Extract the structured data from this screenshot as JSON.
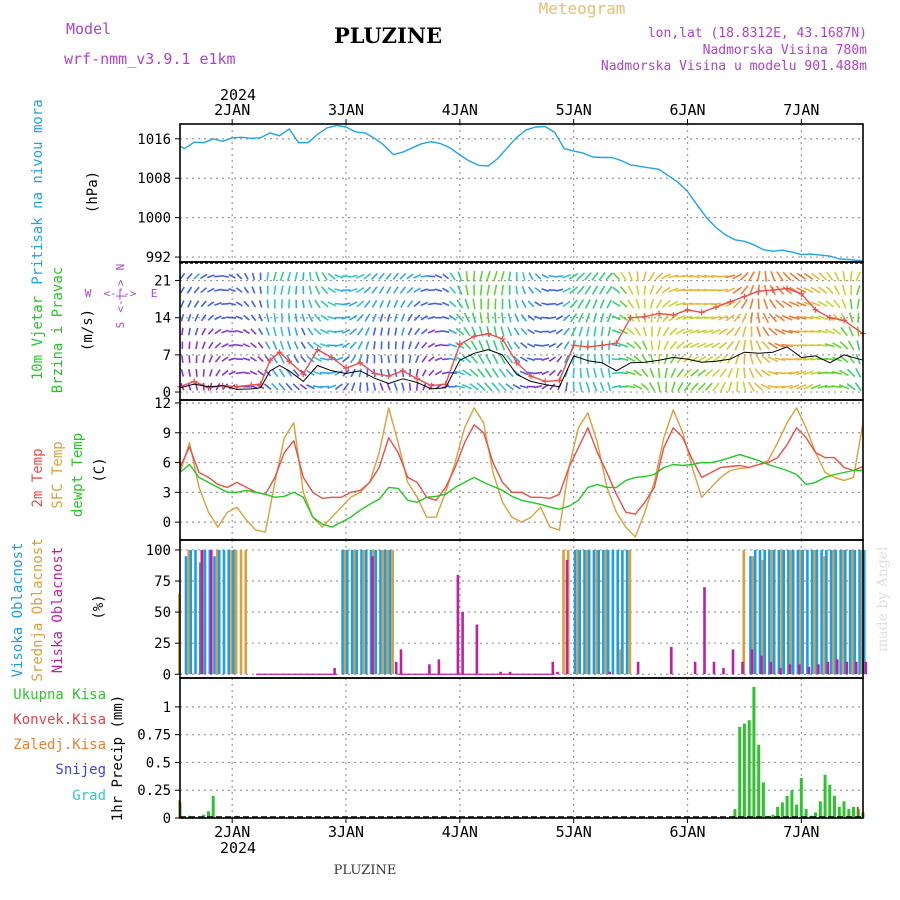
{
  "header": {
    "model_label": "Model",
    "model_name": "wrf-nmm_v3.9.1 e1km",
    "title": "PLUZINE",
    "product": "Meteogram",
    "lonlat": "lon,lat (18.8312E, 43.1687N)",
    "elevation": "Nadmorska Visina 780m",
    "model_elevation": "Nadmorska Visina u modelu 901.488m",
    "footer_title": "PLUZINE",
    "credit": "made by Angel"
  },
  "time_axis": {
    "year": "2024",
    "days": [
      "2JAN",
      "3JAN",
      "4JAN",
      "5JAN",
      "6JAN",
      "7JAN"
    ],
    "start_hour": -11,
    "end_hour": 133
  },
  "colors": {
    "pressure": "#1fa5e6",
    "temp2m": "#e8504a",
    "sfc": "#dba03c",
    "dewpt": "#24c824",
    "high_cloud": "#1f9ce6",
    "mid_cloud": "#dba03c",
    "low_cloud": "#c020a0",
    "total_precip": "#2fc42f",
    "conv_precip": "#e8404a",
    "frz_precip": "#f08030",
    "snow": "#4040e0",
    "graupel": "#30c8c8",
    "gust": "#e8504a",
    "meteogram": "#e8c070",
    "meta_text": "#b040d0"
  },
  "panels": {
    "pressure": {
      "labels": [
        "Pritisak na nivou mora",
        "(hPa)"
      ],
      "ylim": [
        991,
        1019
      ],
      "ticks": [
        "992",
        "1000",
        "1008",
        "1016"
      ]
    },
    "wind": {
      "labels": [
        "10m Vjetar",
        "Brzina i Pravac",
        "(m/s)"
      ],
      "ylim": [
        -1.5,
        24.5
      ],
      "ticks": [
        "0",
        "7",
        "14",
        "21"
      ],
      "compass": {
        "n": "N",
        "s": "S",
        "w": "W",
        "e": "E",
        "arrows": "<-|->"
      }
    },
    "temp": {
      "labels": [
        "2m Temp",
        "SFC Temp",
        "dewpt Temp",
        "(C)"
      ],
      "ylim": [
        -1.8,
        12.3
      ],
      "ticks": [
        "0",
        "3",
        "6",
        "9",
        "12"
      ]
    },
    "cloud": {
      "labels": [
        "Visoka Oblacnost",
        "Srednja Oblacnost",
        "Niska Oblacnost",
        "(%)"
      ],
      "ylim": [
        -3,
        108
      ],
      "ticks": [
        "0",
        "25",
        "50",
        "75",
        "100"
      ]
    },
    "precip": {
      "labels": [
        "Ukupna Kisa",
        "Konvek.Kisa",
        "Zaledj.Kisa",
        "Snijeg",
        "Grad",
        "1hr Precip (mm)"
      ],
      "ylim": [
        0,
        1.26
      ],
      "ticks": [
        "0",
        "0.25",
        "0.5",
        "0.75",
        "1"
      ]
    }
  },
  "chart_data": {
    "type": "line",
    "x_unit": "hours from 2 Jan 2024 00 UTC",
    "pressure_hpa": {
      "x": [
        -11,
        -10,
        -8,
        -6,
        -4,
        -2,
        0,
        2,
        4,
        6,
        8,
        10,
        12,
        14,
        16,
        18,
        20,
        22,
        24,
        26,
        28,
        30,
        32,
        34,
        36,
        38,
        40,
        42,
        44,
        46,
        48,
        50,
        52,
        54,
        56,
        58,
        60,
        62,
        64,
        66,
        68,
        70,
        72,
        74,
        76,
        78,
        80,
        82,
        84,
        86,
        88,
        90,
        92,
        94,
        96,
        98,
        100,
        102,
        104,
        106,
        108,
        110,
        112,
        114,
        116,
        118,
        120,
        122,
        124,
        126,
        128,
        130,
        133
      ],
      "values": [
        1014.5,
        1014,
        1015.3,
        1015.2,
        1016,
        1015.5,
        1016.2,
        1016.3,
        1016.1,
        1016.2,
        1017.2,
        1016.6,
        1018,
        1015.2,
        1015.2,
        1016.9,
        1018.2,
        1018.7,
        1018.4,
        1017.4,
        1017.2,
        1016.1,
        1014.7,
        1012.8,
        1013.3,
        1014.2,
        1015,
        1015.4,
        1015,
        1014.1,
        1012.7,
        1011.5,
        1010.6,
        1010.5,
        1012,
        1014.2,
        1016.3,
        1017.8,
        1018.4,
        1018.5,
        1017.3,
        1014,
        1013.5,
        1013.1,
        1012.3,
        1012.2,
        1012.2,
        1011.6,
        1010.7,
        1010.4,
        1010.1,
        1009.8,
        1008.5,
        1007.2,
        1005.3,
        1002.6,
        1000,
        998,
        996.5,
        995.5,
        995.2,
        994.5,
        993.5,
        993.2,
        993.4,
        993,
        992.5,
        992.6,
        992.4,
        992.2,
        991.6,
        991.5,
        991.2
      ]
    },
    "wind_speed_ms": {
      "x": [
        -11,
        -8,
        -5,
        -2,
        1,
        4,
        6,
        8,
        10,
        12,
        15,
        18,
        21,
        24,
        27,
        30,
        33,
        36,
        39,
        42,
        45,
        48,
        51,
        54,
        57,
        60,
        63,
        66,
        69,
        72,
        75,
        78,
        81,
        84,
        87,
        90,
        93,
        96,
        99,
        102,
        105,
        108,
        111,
        114,
        117,
        120,
        123,
        126,
        129,
        133
      ],
      "values": [
        0.8,
        1.5,
        1,
        1.2,
        0.5,
        0.6,
        0.8,
        4,
        5,
        4,
        2,
        5,
        4,
        3.5,
        4,
        2.6,
        1.6,
        2.5,
        1.8,
        0.6,
        0.8,
        6,
        7.3,
        8,
        7,
        3.3,
        2,
        1.4,
        1,
        6.8,
        5.9,
        5.5,
        4,
        5.5,
        5.6,
        6,
        6.5,
        6.2,
        5.6,
        5.8,
        6.2,
        7.5,
        7.3,
        7.5,
        8.5,
        6.5,
        6.8,
        5.5,
        7,
        6
      ]
    },
    "wind_gust_ms": {
      "x": [
        -11,
        -8,
        -5,
        -2,
        1,
        4,
        6,
        8,
        10,
        12,
        15,
        18,
        21,
        24,
        27,
        30,
        33,
        36,
        39,
        42,
        45,
        48,
        51,
        54,
        57,
        60,
        63,
        66,
        69,
        72,
        75,
        78,
        81,
        84,
        87,
        90,
        93,
        96,
        99,
        102,
        105,
        108,
        111,
        114,
        117,
        120,
        123,
        126,
        129,
        133
      ],
      "values": [
        1,
        2,
        0.8,
        1.2,
        1,
        1.3,
        1.5,
        6,
        7.5,
        5.8,
        3.4,
        8,
        6.5,
        4.5,
        5.5,
        3.5,
        3,
        4,
        2.5,
        1.2,
        1.5,
        9,
        10.5,
        11,
        10,
        5.5,
        3,
        2,
        2.2,
        8.8,
        8.5,
        8.8,
        9.2,
        14,
        14.2,
        14.8,
        14.5,
        15.5,
        15,
        16,
        17,
        18,
        19,
        19.2,
        19.5,
        18.5,
        15.5,
        14,
        13.5,
        11
      ]
    },
    "temp_2m_c": {
      "x": [
        -11,
        -9,
        -7,
        -5,
        -3,
        -1,
        1,
        3,
        5,
        7,
        9,
        11,
        13,
        15,
        17,
        19,
        21,
        23,
        25,
        27,
        29,
        31,
        33,
        35,
        37,
        39,
        41,
        43,
        45,
        47,
        49,
        51,
        53,
        55,
        57,
        59,
        61,
        63,
        65,
        67,
        69,
        71,
        73,
        75,
        77,
        79,
        81,
        83,
        85,
        87,
        89,
        91,
        93,
        95,
        97,
        99,
        101,
        103,
        105,
        107,
        109,
        111,
        113,
        115,
        117,
        119,
        121,
        123,
        125,
        127,
        129,
        131,
        133
      ],
      "values": [
        5.5,
        7.6,
        5,
        4.5,
        3.8,
        3.5,
        4,
        3.5,
        3,
        2.8,
        4.5,
        7,
        8.2,
        4.5,
        3,
        2.4,
        2.5,
        2.5,
        3,
        3.2,
        4,
        5.5,
        8.5,
        7,
        4.5,
        4,
        2.5,
        2.2,
        3.5,
        5.5,
        8,
        9.8,
        9,
        6,
        4,
        3,
        3,
        2.5,
        2.5,
        2.4,
        2.8,
        5.5,
        7.5,
        9.5,
        7,
        5,
        2.8,
        1,
        0.8,
        2,
        3.5,
        7.5,
        9.5,
        8.5,
        6.3,
        4.5,
        5,
        5.5,
        5.6,
        5.7,
        5.5,
        5.8,
        6,
        6.5,
        7.8,
        9.5,
        8.5,
        7,
        6.5,
        6.5,
        5.5,
        5.2,
        5.6
      ]
    },
    "temp_sfc_c": {
      "x": [
        -11,
        -9,
        -7,
        -5,
        -3,
        -1,
        1,
        3,
        5,
        7,
        9,
        11,
        13,
        15,
        17,
        19,
        21,
        23,
        25,
        27,
        29,
        31,
        33,
        35,
        37,
        39,
        41,
        43,
        45,
        47,
        49,
        51,
        53,
        55,
        57,
        59,
        61,
        63,
        65,
        67,
        69,
        71,
        73,
        75,
        77,
        79,
        81,
        83,
        85,
        87,
        89,
        91,
        93,
        95,
        97,
        99,
        101,
        103,
        105,
        107,
        109,
        111,
        113,
        115,
        117,
        119,
        121,
        123,
        125,
        127,
        129,
        131,
        133
      ],
      "values": [
        5,
        8,
        3.5,
        1,
        -0.5,
        1,
        1.5,
        0.2,
        -0.8,
        -1,
        4,
        8.5,
        10,
        3,
        0.5,
        -0.5,
        0.5,
        1.5,
        2.5,
        3,
        4,
        7,
        11.5,
        8,
        4,
        2.5,
        0.5,
        0.5,
        3,
        6,
        9.5,
        11.5,
        10,
        5,
        2,
        0.5,
        0,
        0.5,
        1.5,
        -0.5,
        -0.8,
        5.5,
        9.5,
        11,
        8,
        3.5,
        1,
        -0.5,
        -1.5,
        1,
        4,
        8.5,
        11.3,
        9,
        5.5,
        2.5,
        3.5,
        4.5,
        5.2,
        5.4,
        5.5,
        5.8,
        6.2,
        8,
        10,
        11.5,
        9.5,
        7,
        5,
        4.5,
        4.2,
        4.5,
        10
      ]
    },
    "temp_dewpt_c": {
      "x": [
        -11,
        -9,
        -7,
        -5,
        -3,
        -1,
        1,
        3,
        5,
        7,
        9,
        11,
        13,
        15,
        17,
        19,
        21,
        23,
        25,
        27,
        29,
        31,
        33,
        35,
        37,
        39,
        41,
        43,
        45,
        47,
        49,
        51,
        53,
        55,
        57,
        59,
        61,
        63,
        65,
        67,
        69,
        71,
        73,
        75,
        77,
        79,
        81,
        83,
        85,
        87,
        89,
        91,
        93,
        95,
        97,
        99,
        101,
        103,
        105,
        107,
        109,
        111,
        113,
        115,
        117,
        119,
        121,
        123,
        125,
        127,
        129,
        131,
        133
      ],
      "values": [
        5,
        5.8,
        4.5,
        4,
        3.5,
        3,
        3,
        3.2,
        3,
        2.8,
        2.5,
        2.6,
        3,
        2.5,
        0.5,
        -0.2,
        -0.5,
        0,
        0.5,
        1.2,
        1.8,
        2.3,
        3.5,
        3.4,
        2.2,
        2,
        2.5,
        2.6,
        2.8,
        3.5,
        4,
        4.5,
        4,
        3.6,
        3.2,
        2.6,
        2.2,
        2,
        1.8,
        1.5,
        1.3,
        1.6,
        2.2,
        3.5,
        3.8,
        3.5,
        3.5,
        4.2,
        4.5,
        4.6,
        4.8,
        5.5,
        5.8,
        5.7,
        5.8,
        6,
        6,
        6.2,
        6.5,
        6.8,
        6.5,
        6.2,
        5.8,
        5.5,
        5.2,
        4.8,
        3.8,
        4,
        4.5,
        4.8,
        5,
        5.2,
        5.2
      ]
    },
    "cloud_high_pct": {
      "x": [
        -10,
        -9,
        -8,
        -7,
        -6,
        -5,
        -4,
        -3,
        -2,
        -1,
        0,
        23,
        24,
        25,
        26,
        27,
        28,
        29,
        30,
        31,
        32,
        33,
        72,
        73,
        74,
        75,
        76,
        77,
        78,
        79,
        80,
        81,
        82,
        83,
        109,
        110,
        111,
        112,
        113,
        114,
        115,
        116,
        117,
        118,
        119,
        120,
        121,
        122,
        123,
        124,
        125,
        126,
        127,
        128,
        129,
        130,
        131,
        132,
        133
      ],
      "values": [
        95,
        100,
        100,
        90,
        100,
        100,
        95,
        100,
        100,
        100,
        100,
        100,
        100,
        100,
        100,
        100,
        100,
        100,
        100,
        100,
        100,
        100,
        100,
        100,
        100,
        100,
        100,
        100,
        100,
        100,
        100,
        100,
        100,
        100,
        95,
        100,
        100,
        100,
        100,
        100,
        100,
        100,
        100,
        100,
        100,
        100,
        100,
        100,
        100,
        100,
        100,
        100,
        100,
        100,
        100,
        100,
        100,
        100,
        100
      ]
    },
    "cloud_mid_pct": {
      "x": [
        -11,
        -9,
        -6,
        -3,
        0,
        1,
        2,
        3,
        24,
        26,
        28,
        30,
        32,
        33,
        34,
        70,
        71,
        73,
        75,
        77,
        79,
        82,
        84,
        108,
        110,
        112,
        114,
        116,
        118,
        120,
        123,
        125,
        127,
        129,
        131,
        133
      ],
      "values": [
        65,
        100,
        100,
        100,
        100,
        100,
        100,
        100,
        100,
        100,
        100,
        100,
        100,
        100,
        100,
        100,
        100,
        100,
        100,
        100,
        100,
        20,
        100,
        100,
        95,
        92,
        100,
        100,
        100,
        100,
        100,
        95,
        100,
        100,
        100,
        100
      ]
    },
    "cloud_low_pct": {
      "x": [
        -7,
        -5,
        21,
        29,
        34,
        35,
        41,
        43,
        47,
        48,
        51,
        56,
        58,
        67,
        68,
        70,
        79,
        85,
        92,
        97,
        99,
        101,
        103,
        105,
        107,
        109,
        111,
        113,
        115,
        117,
        119,
        121,
        123,
        125,
        127,
        129,
        131,
        133
      ],
      "values": [
        100,
        100,
        5,
        95,
        10,
        20,
        8,
        12,
        80,
        50,
        40,
        2,
        2,
        10,
        2,
        92,
        2,
        10,
        22,
        10,
        70,
        10,
        5,
        20,
        10,
        20,
        15,
        10,
        5,
        8,
        8,
        6,
        8,
        10,
        12,
        10,
        10,
        10
      ]
    },
    "precip_total_mm": {
      "x": [
        -11,
        -9,
        -8,
        -7,
        -6,
        -5,
        -4,
        1,
        2,
        3,
        4,
        5,
        6,
        7,
        8,
        9,
        10,
        106,
        107,
        108,
        109,
        110,
        111,
        112,
        113,
        114,
        115,
        116,
        117,
        118,
        119,
        120,
        121,
        122,
        123,
        124,
        125,
        126,
        127,
        128,
        129,
        130,
        131,
        132,
        133
      ],
      "values": [
        0.14,
        0.02,
        0,
        0.01,
        0.03,
        0.06,
        0.2,
        0.02,
        0.01,
        0,
        0,
        0,
        0,
        0,
        0.01,
        0,
        0,
        0.08,
        0.82,
        0.85,
        0.88,
        1.18,
        0.66,
        0.32,
        0.02,
        0.03,
        0.1,
        0.14,
        0.2,
        0.25,
        0.12,
        0.36,
        0.08,
        0.02,
        0.05,
        0.15,
        0.39,
        0.3,
        0.2,
        0.1,
        0.15,
        0.08,
        0.1,
        0.08,
        0.05
      ]
    },
    "precip_frz_mm": {
      "x": [
        -11,
        132
      ],
      "values": [
        0.16,
        0.1
      ]
    }
  }
}
